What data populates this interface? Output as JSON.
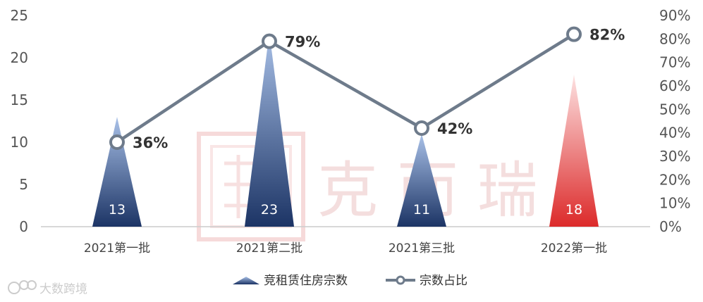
{
  "chart_data": {
    "type": "bar",
    "categories": [
      "2021第一批",
      "2021第二批",
      "2021第三批",
      "2022第一批"
    ],
    "series": [
      {
        "name": "竞租赁住房宗数",
        "kind": "bar",
        "axis": "left",
        "values": [
          13,
          23,
          11,
          18
        ],
        "labels": [
          "13",
          "23",
          "11",
          "18"
        ]
      },
      {
        "name": "宗数占比",
        "kind": "line",
        "axis": "right",
        "values": [
          36,
          79,
          42,
          82
        ],
        "labels": [
          "36%",
          "79%",
          "42%",
          "82%"
        ]
      }
    ],
    "y_left": {
      "min": 0,
      "max": 25,
      "ticks": [
        "0",
        "5",
        "10",
        "15",
        "20",
        "25"
      ]
    },
    "y_right": {
      "min": 0,
      "max": 90,
      "ticks": [
        "0%",
        "10%",
        "20%",
        "30%",
        "40%",
        "50%",
        "60%",
        "70%",
        "80%",
        "90%"
      ]
    },
    "highlight_index": 3,
    "grid": false,
    "legend_position": "bottom"
  },
  "colors": {
    "bar_top": "#a9c1e8",
    "bar_bottom": "#1c3465",
    "highlight_top": "#fde2e2",
    "highlight_bottom": "#dc2a2a",
    "line": "#6e7b8b",
    "axis": "#cccccc"
  },
  "watermark": {
    "text": "克 而 瑞",
    "logo": "seal-icon"
  },
  "brand": {
    "text": "大数跨境",
    "logo": "brand-logo-icon"
  }
}
